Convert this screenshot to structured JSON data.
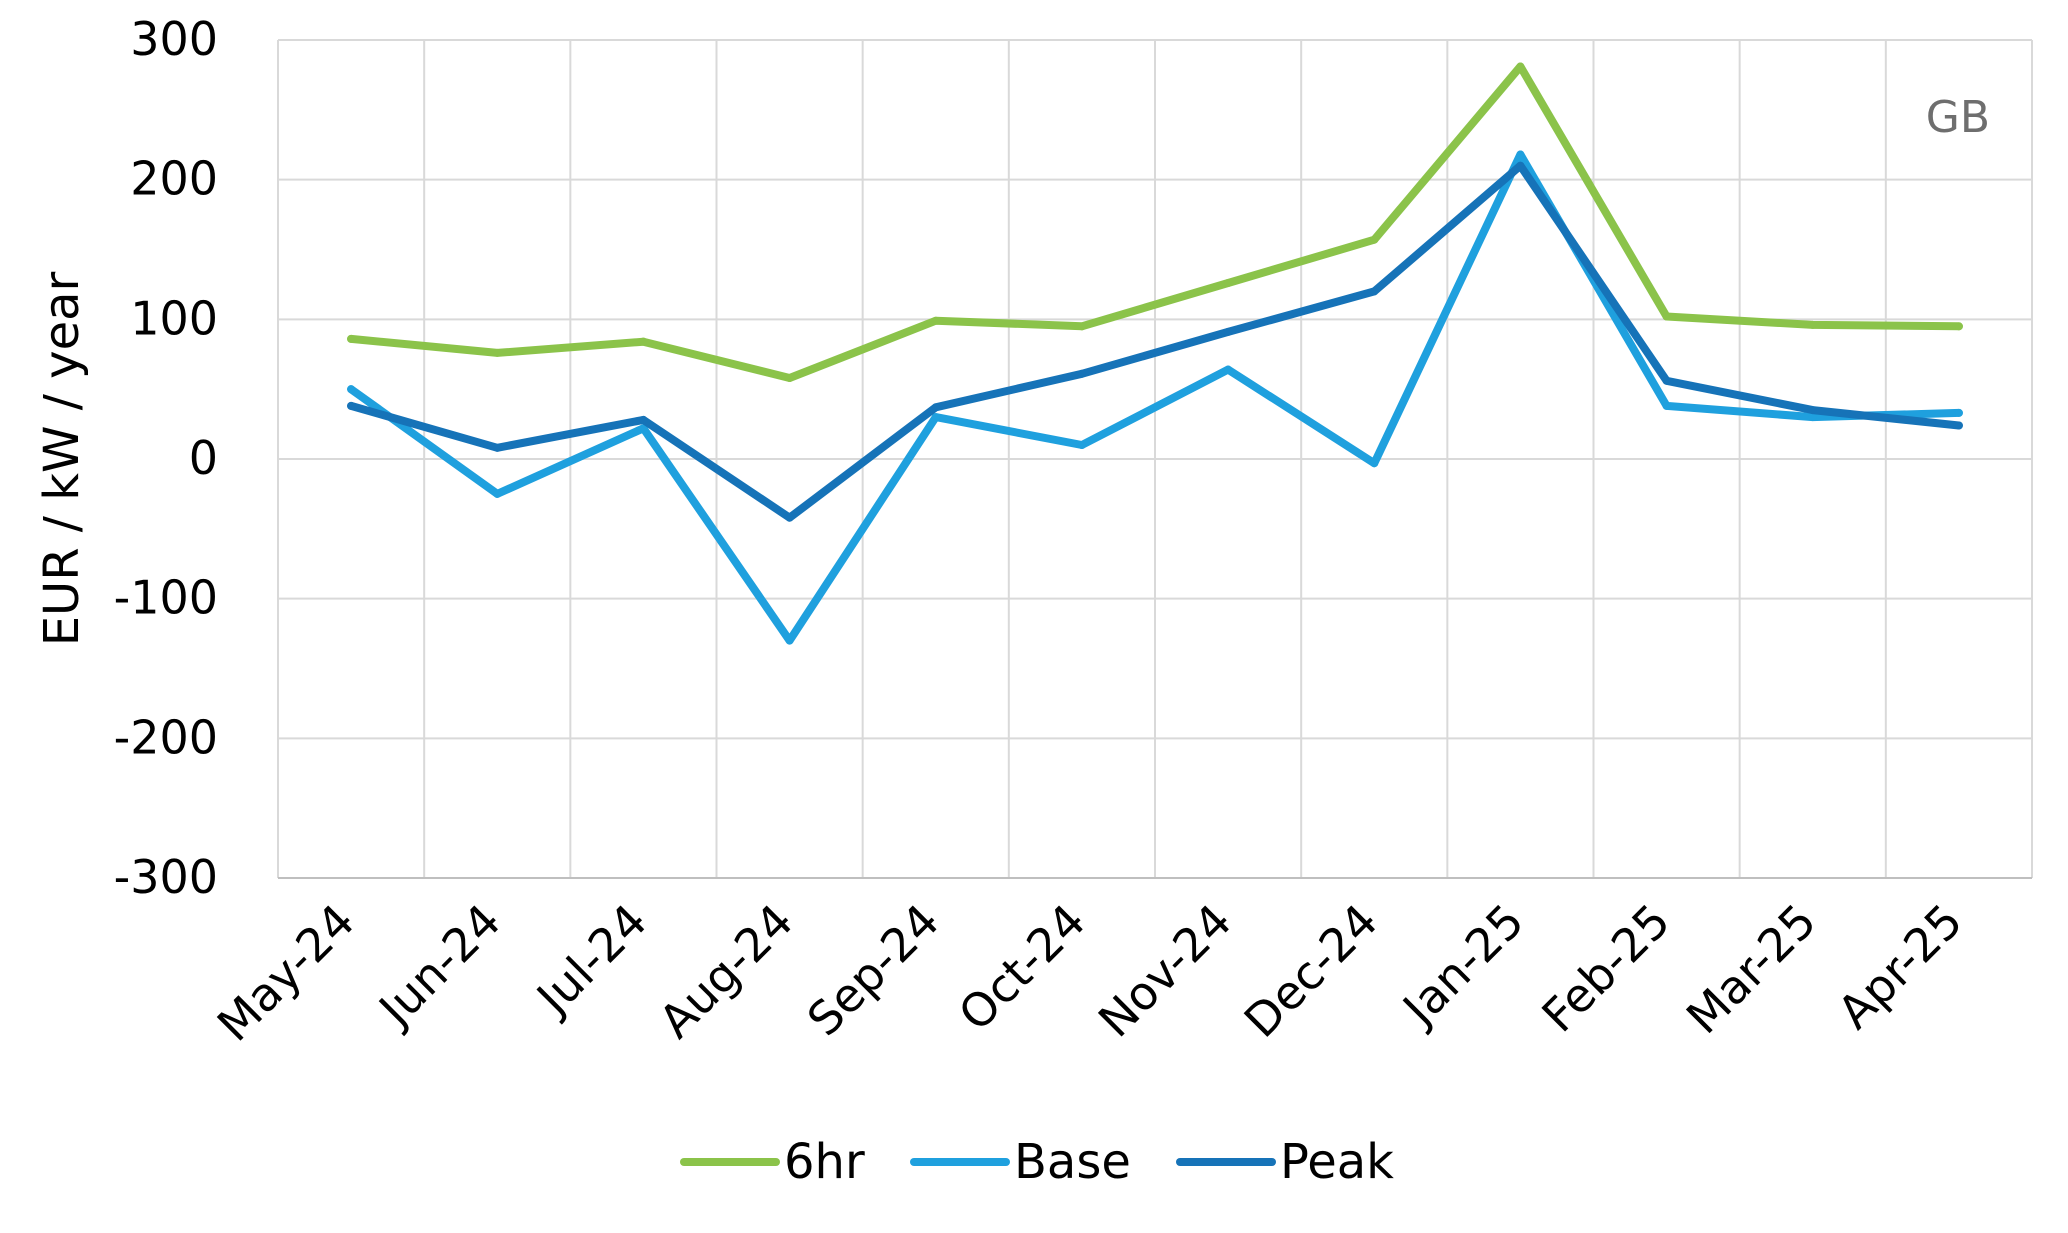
{
  "chart_data": {
    "type": "line",
    "categories": [
      "May-24",
      "Jun-24",
      "Jul-24",
      "Aug-24",
      "Sep-24",
      "Oct-24",
      "Nov-24",
      "Dec-24",
      "Jan-25",
      "Feb-25",
      "Mar-25",
      "Apr-25"
    ],
    "series": [
      {
        "name": "6hr",
        "color": "#8bc34a",
        "values": [
          86,
          76,
          84,
          58,
          99,
          95,
          126,
          157,
          281,
          102,
          96,
          95
        ]
      },
      {
        "name": "Base",
        "color": "#1fa0de",
        "values": [
          50,
          -25,
          22,
          -130,
          30,
          10,
          64,
          -3,
          218,
          38,
          30,
          33
        ]
      },
      {
        "name": "Peak",
        "color": "#1673b8",
        "values": [
          38,
          8,
          28,
          -42,
          37,
          61,
          91,
          120,
          210,
          56,
          35,
          24
        ]
      }
    ],
    "ylabel": "EUR / kW / year",
    "ylim": [
      -300,
      300
    ],
    "yticks": [
      "300",
      "200",
      "100",
      "0",
      "-100",
      "-200",
      "-300"
    ],
    "grid": true,
    "legend_position": "bottom",
    "annotation": "GB"
  }
}
